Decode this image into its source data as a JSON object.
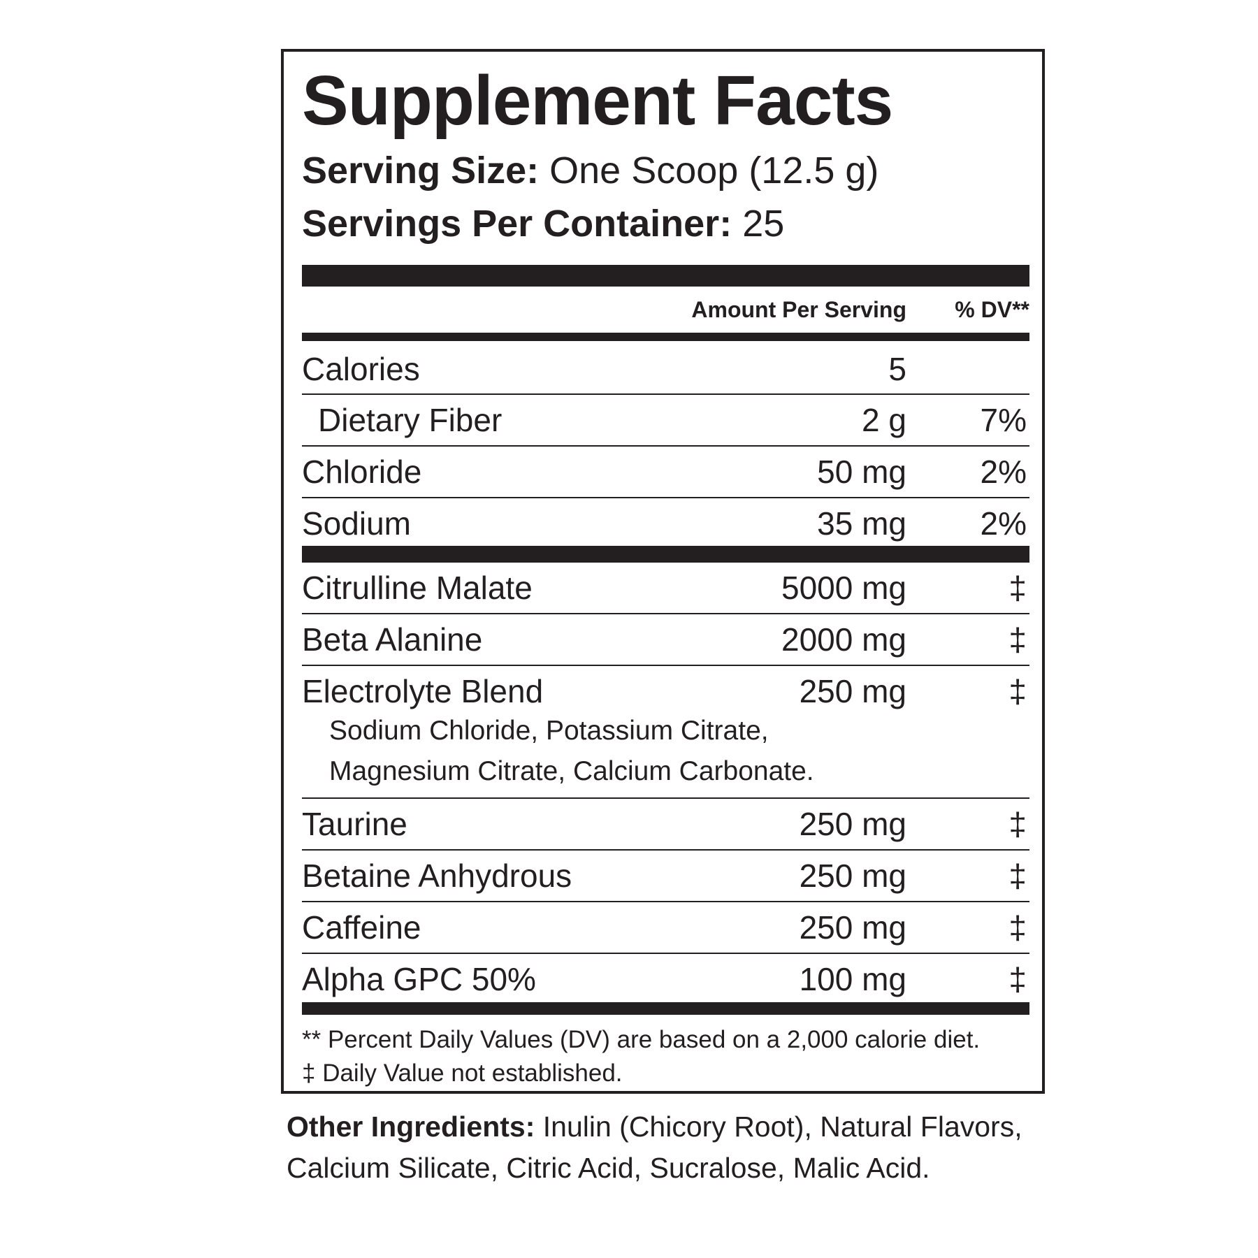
{
  "title": "Supplement Facts",
  "serving_size": {
    "label": "Serving Size:",
    "value": "One Scoop (12.5 g)"
  },
  "servings_per_container": {
    "label": "Servings Per Container:",
    "value": "25"
  },
  "header": {
    "amount": "Amount Per Serving",
    "dv": "% DV**"
  },
  "group1": [
    {
      "name": "Calories",
      "amount": "5",
      "dv": ""
    },
    {
      "name": "Dietary Fiber",
      "amount": "2 g",
      "dv": "7%"
    },
    {
      "name": "Chloride",
      "amount": "50 mg",
      "dv": "2%"
    },
    {
      "name": "Sodium",
      "amount": "35 mg",
      "dv": "2%"
    }
  ],
  "group2": [
    {
      "name": "Citrulline Malate",
      "amount": "5000 mg",
      "dv": "‡"
    },
    {
      "name": "Beta Alanine",
      "amount": "2000 mg",
      "dv": "‡"
    },
    {
      "name": "Electrolyte Blend",
      "amount": "250 mg",
      "dv": "‡",
      "sub1": "Sodium Chloride, Potassium Citrate,",
      "sub2": "Magnesium Citrate, Calcium Carbonate."
    },
    {
      "name": "Taurine",
      "amount": "250 mg",
      "dv": "‡"
    },
    {
      "name": "Betaine Anhydrous",
      "amount": "250 mg",
      "dv": "‡"
    },
    {
      "name": "Caffeine",
      "amount": "250 mg",
      "dv": "‡"
    },
    {
      "name": "Alpha GPC 50%",
      "amount": "100 mg",
      "dv": "‡"
    }
  ],
  "footnotes": [
    "** Percent Daily Values (DV) are based on a 2,000 calorie diet.",
    "‡ Daily Value not established."
  ],
  "other_ingredients": {
    "label": "Other Ingredients:",
    "line1": " Inulin (Chicory Root), Natural Flavors,",
    "line2": "Calcium Silicate, Citric Acid, Sucralose, Malic Acid."
  }
}
